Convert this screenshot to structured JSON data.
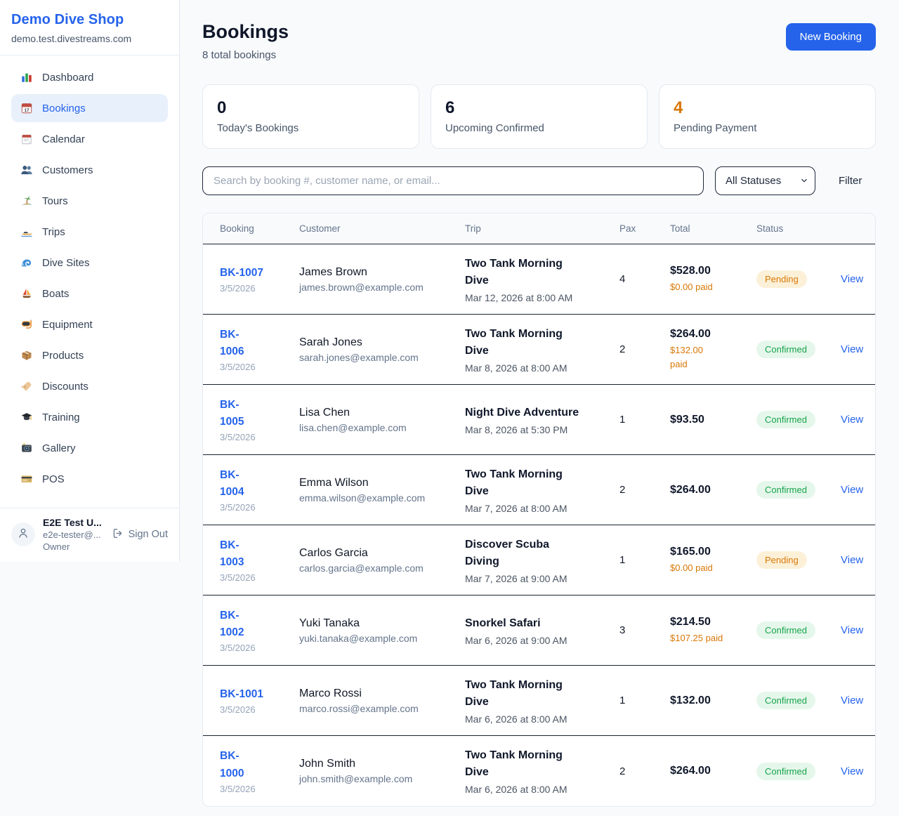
{
  "colors": {
    "accent_blue": "#2563eb",
    "pending_orange": "#d97706",
    "confirmed_green": "#16a34a",
    "page_bg": "#f8fafc"
  },
  "sidebar": {
    "shop_name": "Demo Dive Shop",
    "shop_domain": "demo.test.divestreams.com",
    "items": [
      {
        "label": "Dashboard",
        "icon": "bar-chart-icon",
        "active": false
      },
      {
        "label": "Bookings",
        "icon": "calendar-icon",
        "active": true
      },
      {
        "label": "Calendar",
        "icon": "tear-off-calendar-icon",
        "active": false
      },
      {
        "label": "Customers",
        "icon": "people-icon",
        "active": false
      },
      {
        "label": "Tours",
        "icon": "island-icon",
        "active": false
      },
      {
        "label": "Trips",
        "icon": "speedboat-icon",
        "active": false
      },
      {
        "label": "Dive Sites",
        "icon": "wave-icon",
        "active": false
      },
      {
        "label": "Boats",
        "icon": "sailboat-icon",
        "active": false
      },
      {
        "label": "Equipment",
        "icon": "dive-mask-icon",
        "active": false
      },
      {
        "label": "Products",
        "icon": "package-icon",
        "active": false
      },
      {
        "label": "Discounts",
        "icon": "tag-icon",
        "active": false
      },
      {
        "label": "Training",
        "icon": "graduation-cap-icon",
        "active": false
      },
      {
        "label": "Gallery",
        "icon": "camera-icon",
        "active": false
      },
      {
        "label": "POS",
        "icon": "credit-card-icon",
        "active": false
      }
    ],
    "user": {
      "name": "E2E Test U...",
      "email": "e2e-tester@...",
      "role": "Owner",
      "sign_out_label": "Sign Out"
    }
  },
  "header": {
    "title": "Bookings",
    "subtitle": "8 total bookings",
    "new_booking_label": "New Booking"
  },
  "stats": [
    {
      "value": "0",
      "label": "Today's Bookings",
      "accent": false
    },
    {
      "value": "6",
      "label": "Upcoming Confirmed",
      "accent": false
    },
    {
      "value": "4",
      "label": "Pending Payment",
      "accent": true
    }
  ],
  "filters": {
    "search_placeholder": "Search by booking #, customer name, or email...",
    "status_selected": "All Statuses",
    "filter_label": "Filter"
  },
  "table": {
    "columns": [
      "Booking",
      "Customer",
      "Trip",
      "Pax",
      "Total",
      "Status"
    ],
    "rows": [
      {
        "id": "BK-1007",
        "date": "3/5/2026",
        "customer": "James Brown",
        "email": "james.brown@example.com",
        "trip": "Two Tank Morning\nDive",
        "trip_date": "Mar 12, 2026 at 8:00 AM",
        "pax": "4",
        "total": "$528.00",
        "paid": "$0.00 paid",
        "status": "Pending",
        "view_label": "View"
      },
      {
        "id": "BK-\n1006",
        "date": "3/5/2026",
        "customer": "Sarah Jones",
        "email": "sarah.jones@example.com",
        "trip": "Two Tank Morning\nDive",
        "trip_date": "Mar 8, 2026 at 8:00 AM",
        "pax": "2",
        "total": "$264.00",
        "paid": "$132.00\npaid",
        "status": "Confirmed",
        "view_label": "View"
      },
      {
        "id": "BK-\n1005",
        "date": "3/5/2026",
        "customer": "Lisa Chen",
        "email": "lisa.chen@example.com",
        "trip": "Night Dive Adventure",
        "trip_date": "Mar 8, 2026 at 5:30 PM",
        "pax": "1",
        "total": "$93.50",
        "paid": null,
        "status": "Confirmed",
        "view_label": "View"
      },
      {
        "id": "BK-\n1004",
        "date": "3/5/2026",
        "customer": "Emma Wilson",
        "email": "emma.wilson@example.com",
        "trip": "Two Tank Morning\nDive",
        "trip_date": "Mar 7, 2026 at 8:00 AM",
        "pax": "2",
        "total": "$264.00",
        "paid": null,
        "status": "Confirmed",
        "view_label": "View"
      },
      {
        "id": "BK-\n1003",
        "date": "3/5/2026",
        "customer": "Carlos Garcia",
        "email": "carlos.garcia@example.com",
        "trip": "Discover Scuba\nDiving",
        "trip_date": "Mar 7, 2026 at 9:00 AM",
        "pax": "1",
        "total": "$165.00",
        "paid": "$0.00 paid",
        "status": "Pending",
        "view_label": "View"
      },
      {
        "id": "BK-\n1002",
        "date": "3/5/2026",
        "customer": "Yuki Tanaka",
        "email": "yuki.tanaka@example.com",
        "trip": "Snorkel Safari",
        "trip_date": "Mar 6, 2026 at 9:00 AM",
        "pax": "3",
        "total": "$214.50",
        "paid": "$107.25 paid",
        "status": "Confirmed",
        "view_label": "View"
      },
      {
        "id": "BK-1001",
        "date": "3/5/2026",
        "customer": "Marco Rossi",
        "email": "marco.rossi@example.com",
        "trip": "Two Tank Morning\nDive",
        "trip_date": "Mar 6, 2026 at 8:00 AM",
        "pax": "1",
        "total": "$132.00",
        "paid": null,
        "status": "Confirmed",
        "view_label": "View"
      },
      {
        "id": "BK-\n1000",
        "date": "3/5/2026",
        "customer": "John Smith",
        "email": "john.smith@example.com",
        "trip": "Two Tank Morning\nDive",
        "trip_date": "Mar 6, 2026 at 8:00 AM",
        "pax": "2",
        "total": "$264.00",
        "paid": null,
        "status": "Confirmed",
        "view_label": "View"
      }
    ]
  }
}
